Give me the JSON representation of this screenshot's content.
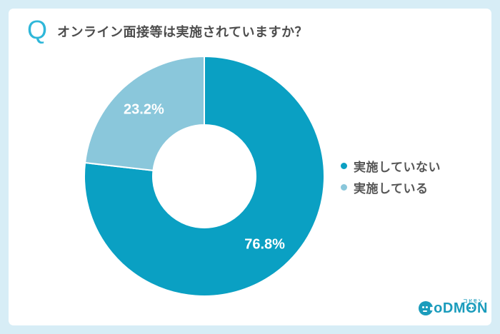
{
  "header": {
    "q_icon": "Q",
    "title": "オンライン面接等は実施されていますか？"
  },
  "chart_data": {
    "type": "pie",
    "subtype": "donut",
    "title": "オンライン面接等は実施されていますか？",
    "categories": [
      "実施していない",
      "実施している"
    ],
    "values": [
      76.8,
      23.2
    ],
    "labels": [
      "76.8%",
      "23.2%"
    ],
    "colors": [
      "#0aa0c3",
      "#8ac7db"
    ],
    "start_angle_deg": 0,
    "direction": "clockwise",
    "inner_radius_ratio": 0.43,
    "legend_position": "right",
    "separator_color": "#ffffff"
  },
  "legend": {
    "items": [
      {
        "label": "実施していない",
        "color": "#0aa0c3"
      },
      {
        "label": "実施している",
        "color": "#8ac7db"
      }
    ]
  },
  "logo": {
    "brand": "CoDMON",
    "odm": "oDM",
    "o": "O",
    "n": "N",
    "katakana": "コドモン",
    "color": "#1b9cbc"
  },
  "colors": {
    "page_border": "#d7edf6",
    "card_background": "#ffffff",
    "title_text": "#4d4d4d",
    "q_icon": "#2fb7d9",
    "slice_label_text": "#ffffff"
  }
}
